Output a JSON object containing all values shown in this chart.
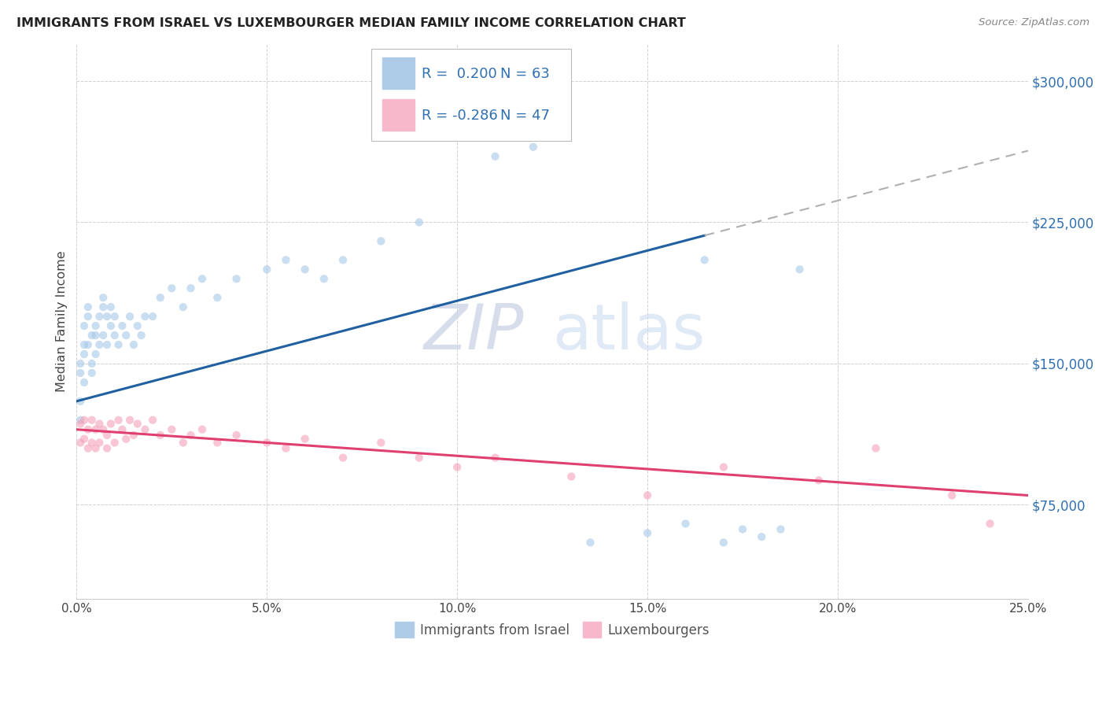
{
  "title": "IMMIGRANTS FROM ISRAEL VS LUXEMBOURGER MEDIAN FAMILY INCOME CORRELATION CHART",
  "source": "Source: ZipAtlas.com",
  "ylabel": "Median Family Income",
  "yticks": [
    75000,
    150000,
    225000,
    300000
  ],
  "ytick_labels": [
    "$75,000",
    "$150,000",
    "$225,000",
    "$300,000"
  ],
  "xlim": [
    0.0,
    0.25
  ],
  "ylim": [
    25000,
    320000
  ],
  "blue_color": "#a8c8e8",
  "pink_color": "#f4a0b8",
  "trend_blue": "#2060a0",
  "trend_pink": "#e04070",
  "trend_dash_color": "#b0b0b0",
  "watermark_zip": "ZIP",
  "watermark_atlas": "atlas",
  "legend_label1": "Immigrants from Israel",
  "legend_label2": "Luxembourgers",
  "blue_scatter_x": [
    0.001,
    0.001,
    0.001,
    0.001,
    0.002,
    0.002,
    0.002,
    0.002,
    0.003,
    0.003,
    0.003,
    0.004,
    0.004,
    0.004,
    0.005,
    0.005,
    0.005,
    0.006,
    0.006,
    0.007,
    0.007,
    0.007,
    0.008,
    0.008,
    0.009,
    0.009,
    0.01,
    0.01,
    0.011,
    0.012,
    0.013,
    0.014,
    0.015,
    0.016,
    0.017,
    0.018,
    0.02,
    0.022,
    0.025,
    0.028,
    0.03,
    0.033,
    0.037,
    0.042,
    0.05,
    0.055,
    0.06,
    0.065,
    0.07,
    0.08,
    0.09,
    0.1,
    0.11,
    0.12,
    0.135,
    0.15,
    0.16,
    0.165,
    0.17,
    0.175,
    0.18,
    0.185,
    0.19
  ],
  "blue_scatter_y": [
    145000,
    150000,
    130000,
    120000,
    160000,
    170000,
    155000,
    140000,
    175000,
    180000,
    160000,
    165000,
    150000,
    145000,
    170000,
    165000,
    155000,
    175000,
    160000,
    180000,
    185000,
    165000,
    175000,
    160000,
    170000,
    180000,
    165000,
    175000,
    160000,
    170000,
    165000,
    175000,
    160000,
    170000,
    165000,
    175000,
    175000,
    185000,
    190000,
    180000,
    190000,
    195000,
    185000,
    195000,
    200000,
    205000,
    200000,
    195000,
    205000,
    215000,
    225000,
    270000,
    260000,
    265000,
    55000,
    60000,
    65000,
    205000,
    55000,
    62000,
    58000,
    62000,
    200000
  ],
  "pink_scatter_x": [
    0.001,
    0.001,
    0.002,
    0.002,
    0.003,
    0.003,
    0.004,
    0.004,
    0.005,
    0.005,
    0.006,
    0.006,
    0.007,
    0.008,
    0.008,
    0.009,
    0.01,
    0.011,
    0.012,
    0.013,
    0.014,
    0.015,
    0.016,
    0.018,
    0.02,
    0.022,
    0.025,
    0.028,
    0.03,
    0.033,
    0.037,
    0.042,
    0.05,
    0.055,
    0.06,
    0.07,
    0.08,
    0.09,
    0.1,
    0.11,
    0.13,
    0.15,
    0.17,
    0.195,
    0.21,
    0.23,
    0.24
  ],
  "pink_scatter_y": [
    118000,
    108000,
    120000,
    110000,
    115000,
    105000,
    120000,
    108000,
    115000,
    105000,
    118000,
    108000,
    115000,
    112000,
    105000,
    118000,
    108000,
    120000,
    115000,
    110000,
    120000,
    112000,
    118000,
    115000,
    120000,
    112000,
    115000,
    108000,
    112000,
    115000,
    108000,
    112000,
    108000,
    105000,
    110000,
    100000,
    108000,
    100000,
    95000,
    100000,
    90000,
    80000,
    95000,
    88000,
    105000,
    80000,
    65000
  ],
  "blue_trend_x0": 0.0,
  "blue_trend_y0": 130000,
  "blue_trend_x1": 0.165,
  "blue_trend_y1": 218000,
  "blue_trend_x2": 0.25,
  "blue_trend_y2": 263000,
  "pink_trend_x0": 0.0,
  "pink_trend_y0": 115000,
  "pink_trend_x1": 0.25,
  "pink_trend_y1": 80000
}
